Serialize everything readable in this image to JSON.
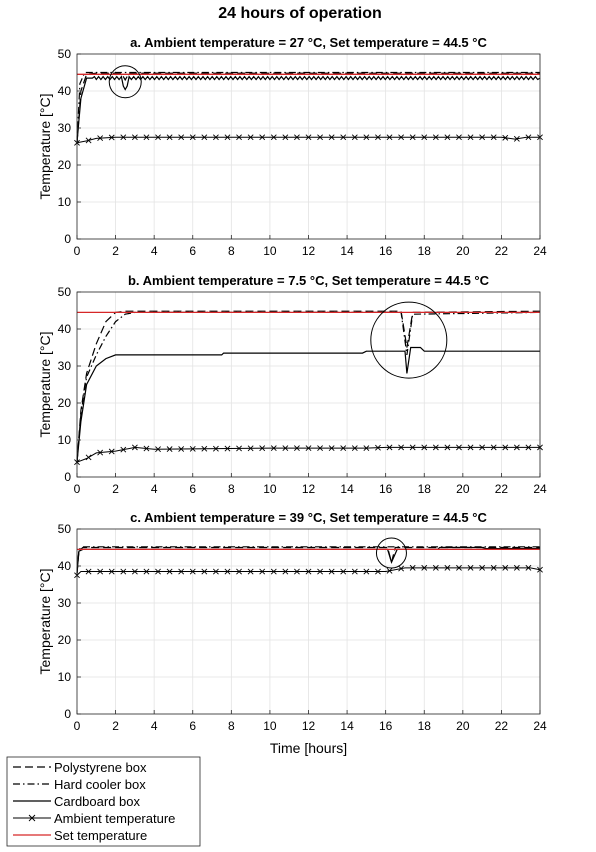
{
  "figure": {
    "title": "24 hours of operation"
  },
  "legend": {
    "entries": [
      {
        "label": "Polystyrene box",
        "style": "dashed",
        "color": "#000000"
      },
      {
        "label": "Hard cooler box",
        "style": "dashdot",
        "color": "#000000"
      },
      {
        "label": "Cardboard box",
        "style": "solid",
        "color": "#000000"
      },
      {
        "label": "Ambient temperature",
        "style": "solid-x",
        "color": "#000000"
      },
      {
        "label": "Set temperature",
        "style": "solid",
        "color": "#d62728"
      }
    ]
  },
  "chart_data": [
    {
      "type": "line",
      "title": "a. Ambient temperature = 27 °C, Set temperature = 44.5 °C",
      "xlabel": "",
      "ylabel": "Temperature [°C]",
      "xlim": [
        0,
        24
      ],
      "ylim": [
        0,
        50
      ],
      "xticks": [
        0,
        2,
        4,
        6,
        8,
        10,
        12,
        14,
        16,
        18,
        20,
        22,
        24
      ],
      "yticks": [
        0,
        10,
        20,
        30,
        40,
        50
      ],
      "grid": true,
      "annotation": {
        "type": "circle",
        "x": 2.5,
        "y": 42.5
      },
      "series": [
        {
          "name": "Polystyrene box",
          "points": [
            [
              0,
              26
            ],
            [
              0.2,
              40
            ],
            [
              0.5,
              44.5
            ],
            [
              1,
              44.8
            ],
            [
              2.3,
              44.8
            ],
            [
              2.5,
              43
            ],
            [
              2.7,
              44.8
            ],
            [
              24,
              44.8
            ]
          ]
        },
        {
          "name": "Hard cooler box",
          "points": [
            [
              0,
              26
            ],
            [
              0.15,
              42
            ],
            [
              0.4,
              45
            ],
            [
              24,
              45
            ]
          ]
        },
        {
          "name": "Cardboard box",
          "points": [
            [
              0,
              26
            ],
            [
              0.2,
              38
            ],
            [
              0.5,
              43.5
            ],
            [
              1,
              43.5
            ],
            [
              2.3,
              43.5
            ],
            [
              2.5,
              40
            ],
            [
              2.7,
              43.5
            ],
            [
              24,
              43.5
            ]
          ],
          "oscillation": 0.8
        },
        {
          "name": "Ambient temperature",
          "points": [
            [
              0,
              26
            ],
            [
              0.5,
              26.5
            ],
            [
              1,
              27.2
            ],
            [
              2,
              27.5
            ],
            [
              22,
              27.5
            ],
            [
              22.7,
              27
            ],
            [
              23.3,
              27.5
            ],
            [
              24,
              27.5
            ]
          ]
        },
        {
          "name": "Set temperature",
          "points": [
            [
              0,
              44.5
            ],
            [
              24,
              44.5
            ]
          ]
        }
      ]
    },
    {
      "type": "line",
      "title": "b. Ambient temperature = 7.5 °C, Set temperature = 44.5 °C",
      "xlabel": "",
      "ylabel": "Temperature [°C]",
      "xlim": [
        0,
        24
      ],
      "ylim": [
        0,
        50
      ],
      "xticks": [
        0,
        2,
        4,
        6,
        8,
        10,
        12,
        14,
        16,
        18,
        20,
        22,
        24
      ],
      "yticks": [
        0,
        10,
        20,
        30,
        40,
        50
      ],
      "grid": true,
      "annotation": {
        "type": "circle",
        "x": 17.2,
        "y": 37
      },
      "series": [
        {
          "name": "Polystyrene box",
          "points": [
            [
              0,
              4
            ],
            [
              0.2,
              18
            ],
            [
              0.5,
              28
            ],
            [
              1,
              36
            ],
            [
              1.5,
              42
            ],
            [
              2,
              44.5
            ],
            [
              2.5,
              44.8
            ],
            [
              16.8,
              44.8
            ],
            [
              17.1,
              35
            ],
            [
              17.4,
              44.5
            ],
            [
              24,
              44.8
            ]
          ]
        },
        {
          "name": "Hard cooler box",
          "points": [
            [
              0,
              4
            ],
            [
              0.2,
              17
            ],
            [
              0.5,
              27
            ],
            [
              1,
              33
            ],
            [
              1.5,
              38
            ],
            [
              2,
              42
            ],
            [
              2.5,
              44
            ],
            [
              3,
              44.5
            ],
            [
              16.8,
              44.5
            ],
            [
              17.1,
              33
            ],
            [
              17.4,
              44
            ],
            [
              24,
              44.5
            ]
          ]
        },
        {
          "name": "Cardboard box",
          "points": [
            [
              0,
              4
            ],
            [
              0.2,
              15
            ],
            [
              0.5,
              25
            ],
            [
              1,
              30
            ],
            [
              1.5,
              32
            ],
            [
              2,
              33
            ],
            [
              7.5,
              33
            ],
            [
              7.6,
              33.5
            ],
            [
              14.8,
              33.5
            ],
            [
              15,
              34
            ],
            [
              17,
              34
            ],
            [
              17.1,
              28
            ],
            [
              17.3,
              35
            ],
            [
              17.8,
              35
            ],
            [
              18,
              34
            ],
            [
              24,
              34
            ]
          ]
        },
        {
          "name": "Ambient temperature",
          "points": [
            [
              0,
              4
            ],
            [
              0.5,
              5
            ],
            [
              1,
              6.5
            ],
            [
              2,
              7
            ],
            [
              2.5,
              7.5
            ],
            [
              3,
              8
            ],
            [
              4,
              7.5
            ],
            [
              10,
              7.8
            ],
            [
              15,
              7.8
            ],
            [
              16,
              8
            ],
            [
              24,
              8
            ]
          ]
        },
        {
          "name": "Set temperature",
          "points": [
            [
              0,
              44.5
            ],
            [
              24,
              44.5
            ]
          ]
        }
      ]
    },
    {
      "type": "line",
      "title": "c. Ambient temperature = 39 °C, Set temperature = 44.5 °C",
      "xlabel": "Time [hours]",
      "ylabel": "Temperature [°C]",
      "xlim": [
        0,
        24
      ],
      "ylim": [
        0,
        50
      ],
      "xticks": [
        0,
        2,
        4,
        6,
        8,
        10,
        12,
        14,
        16,
        18,
        20,
        22,
        24
      ],
      "yticks": [
        0,
        10,
        20,
        30,
        40,
        50
      ],
      "grid": true,
      "annotation": {
        "type": "circle",
        "x": 16.3,
        "y": 43.5
      },
      "series": [
        {
          "name": "Polystyrene box",
          "points": [
            [
              0,
              38
            ],
            [
              0.1,
              44
            ],
            [
              0.3,
              45
            ],
            [
              16.1,
              45
            ],
            [
              16.3,
              41
            ],
            [
              16.5,
              45
            ],
            [
              24,
              45
            ]
          ]
        },
        {
          "name": "Hard cooler box",
          "points": [
            [
              0,
              38
            ],
            [
              0.1,
              44.5
            ],
            [
              0.3,
              45.2
            ],
            [
              24,
              45.2
            ]
          ]
        },
        {
          "name": "Cardboard box",
          "points": [
            [
              0,
              38
            ],
            [
              0.1,
              44
            ],
            [
              0.3,
              44.5
            ],
            [
              16.1,
              44.5
            ],
            [
              16.3,
              41
            ],
            [
              16.6,
              44.5
            ],
            [
              18.7,
              44.5
            ],
            [
              18.8,
              45
            ],
            [
              21,
              45
            ],
            [
              21.2,
              44.7
            ],
            [
              24,
              44.7
            ]
          ]
        },
        {
          "name": "Ambient temperature",
          "points": [
            [
              0,
              37.5
            ],
            [
              0.2,
              38.5
            ],
            [
              16,
              38.5
            ],
            [
              17,
              39.5
            ],
            [
              23.5,
              39.5
            ],
            [
              24,
              39
            ]
          ]
        },
        {
          "name": "Set temperature",
          "points": [
            [
              0,
              44.5
            ],
            [
              24,
              44.5
            ]
          ]
        }
      ]
    }
  ]
}
